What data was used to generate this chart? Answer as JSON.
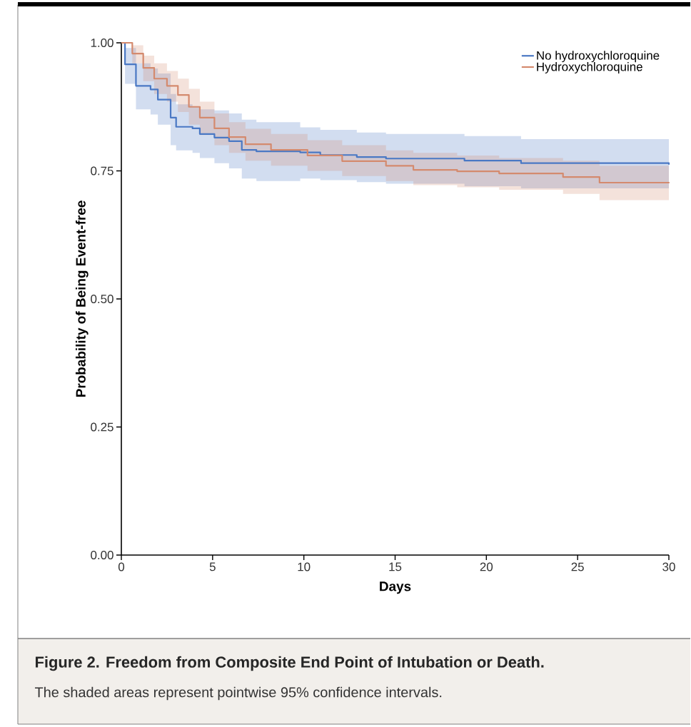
{
  "chart_data": {
    "type": "step",
    "title": "Figure 2. Freedom from Composite End Point of Intubation or Death.",
    "subtitle": "The shaded areas represent pointwise 95% confidence intervals.",
    "xlabel": "Days",
    "ylabel": "Probability of Being Event-free",
    "xlim": [
      0,
      30
    ],
    "xticks": [
      0,
      5,
      10,
      15,
      20,
      25,
      30
    ],
    "ylim": [
      0,
      1
    ],
    "yticks": [
      {
        "value": 0,
        "label": "0.00"
      },
      {
        "value": 0.25,
        "label": "0.25"
      },
      {
        "value": 0.5,
        "label": "0.50"
      },
      {
        "value": 0.75,
        "label": "0.75"
      },
      {
        "value": 1,
        "label": "1.00"
      }
    ],
    "grid": false,
    "legend": "top right",
    "marker": "none",
    "line_style": "solid",
    "series": [
      {
        "name": "No hydroxychloroquine",
        "color": "#4a78c4",
        "x": [
          0,
          0.2,
          0.8,
          1.6,
          2.0,
          2.7,
          3.0,
          3.9,
          4.3,
          5.1,
          5.9,
          6.6,
          7.4,
          9.8,
          10.9,
          12.9,
          14.5,
          18.8,
          21.9,
          30
        ],
        "values": [
          1,
          0.958,
          0.916,
          0.909,
          0.889,
          0.854,
          0.836,
          0.833,
          0.822,
          0.815,
          0.808,
          0.791,
          0.788,
          0.786,
          0.781,
          0.777,
          0.774,
          0.77,
          0.765,
          0.762
        ],
        "upper": [
          1,
          0.99,
          0.96,
          0.95,
          0.94,
          0.9,
          0.88,
          0.875,
          0.87,
          0.868,
          0.862,
          0.85,
          0.845,
          0.835,
          0.83,
          0.825,
          0.822,
          0.818,
          0.812,
          0.81
        ],
        "lower": [
          1,
          0.92,
          0.87,
          0.86,
          0.84,
          0.8,
          0.79,
          0.785,
          0.775,
          0.765,
          0.755,
          0.735,
          0.73,
          0.735,
          0.732,
          0.728,
          0.725,
          0.72,
          0.716,
          0.714
        ]
      },
      {
        "name": "Hydroxychloroquine",
        "color": "#d48a6e",
        "x": [
          0,
          0.6,
          1.2,
          1.8,
          2.5,
          3.1,
          3.7,
          4.3,
          5.1,
          5.9,
          6.8,
          8.2,
          10.2,
          12.1,
          14.5,
          16.0,
          18.4,
          20.7,
          24.2,
          26.2,
          30
        ],
        "values": [
          1,
          0.979,
          0.951,
          0.93,
          0.916,
          0.898,
          0.875,
          0.854,
          0.833,
          0.816,
          0.802,
          0.791,
          0.78,
          0.769,
          0.76,
          0.752,
          0.749,
          0.745,
          0.738,
          0.727,
          0.726
        ],
        "upper": [
          1,
          0.995,
          0.975,
          0.96,
          0.945,
          0.93,
          0.91,
          0.885,
          0.862,
          0.845,
          0.832,
          0.822,
          0.81,
          0.8,
          0.79,
          0.785,
          0.78,
          0.775,
          0.77,
          0.76,
          0.76
        ],
        "lower": [
          1,
          0.96,
          0.925,
          0.9,
          0.885,
          0.865,
          0.84,
          0.82,
          0.8,
          0.785,
          0.77,
          0.76,
          0.75,
          0.74,
          0.73,
          0.722,
          0.718,
          0.713,
          0.705,
          0.693,
          0.692
        ]
      }
    ]
  }
}
